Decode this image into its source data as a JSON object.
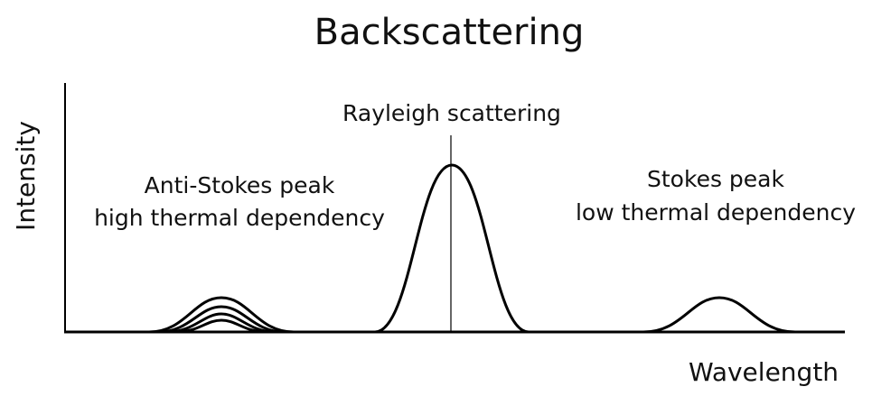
{
  "title": "Backscattering",
  "axes": {
    "y_label": "Intensity",
    "x_label": "Wavelength"
  },
  "peaks": [
    {
      "lines": [
        "Anti-Stokes peak",
        "high thermal dependency"
      ]
    },
    {
      "lines": [
        "Rayleigh scattering"
      ]
    },
    {
      "lines": [
        "Stokes peak",
        "low thermal dependency"
      ]
    }
  ]
}
